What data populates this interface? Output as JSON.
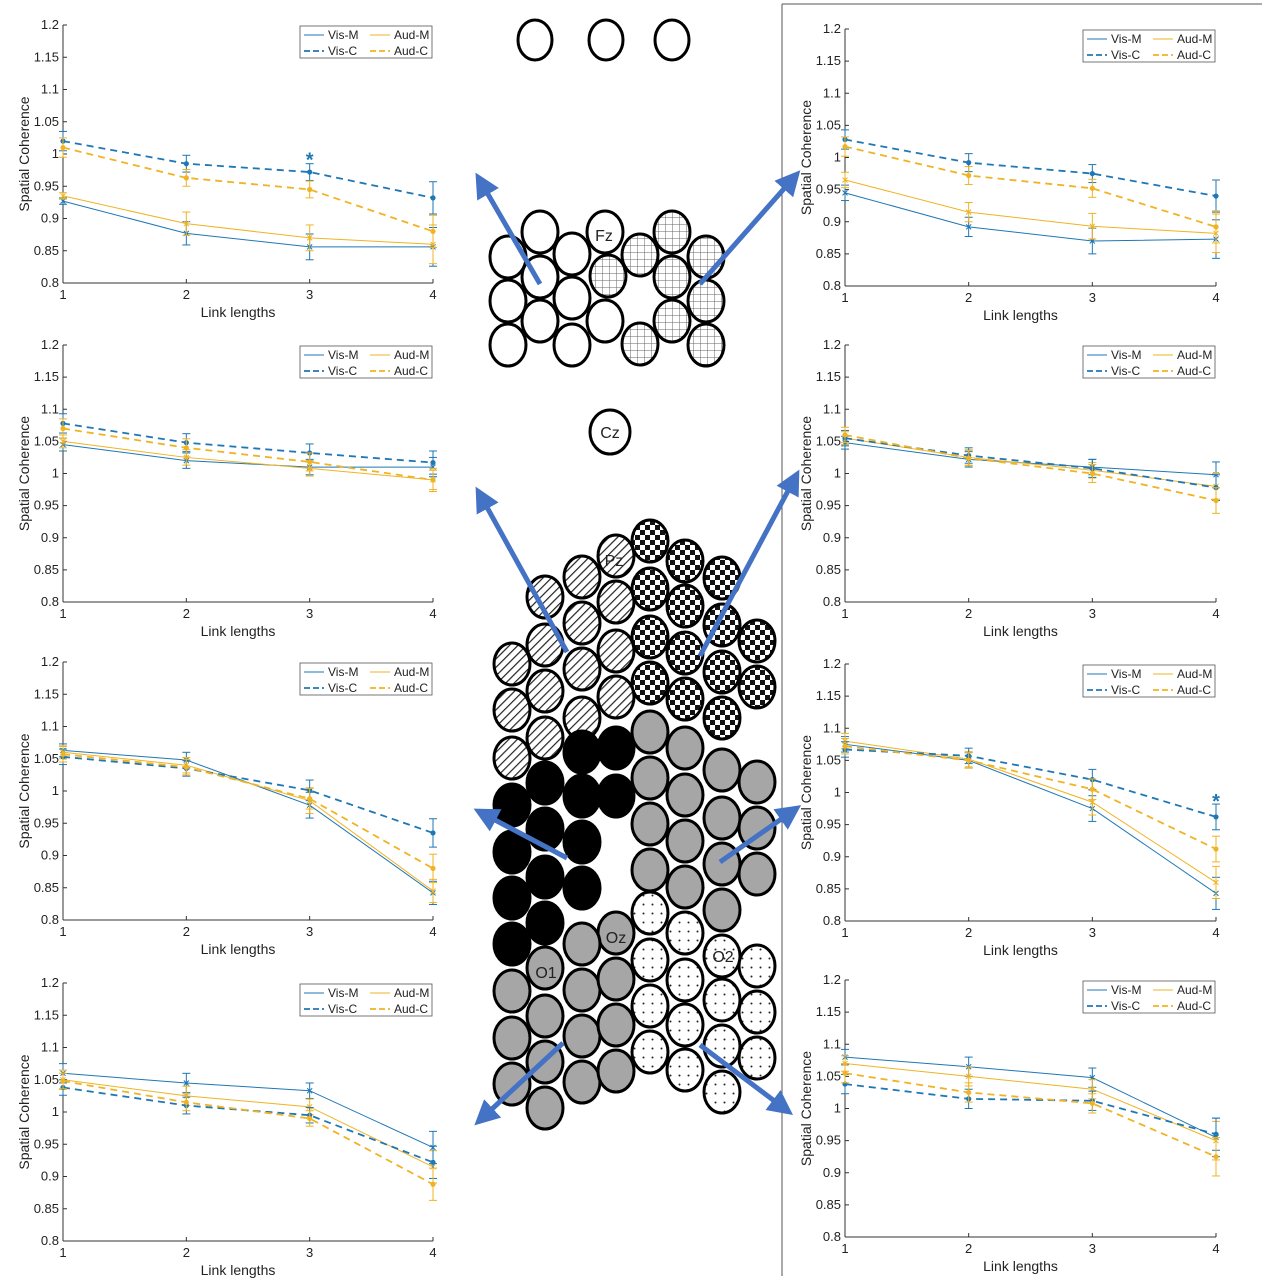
{
  "legend": {
    "vis_m": "Vis-M",
    "aud_m": "Aud-M",
    "vis_c": "Vis-C",
    "aud_c": "Aud-C"
  },
  "colors": {
    "vis": "#1f77b4",
    "aud": "#f0b323",
    "arrow": "#4472c4"
  },
  "chart_data": [
    {
      "type": "line",
      "panel": "left-1",
      "x": [
        1,
        2,
        3,
        4
      ],
      "xlabel": "Link lengths",
      "ylabel": "Spatial Coherence",
      "ylim": [
        0.8,
        1.2
      ],
      "legend_position": "top-right",
      "series": [
        {
          "name": "Vis-M",
          "values": [
            0.927,
            0.877,
            0.856,
            0.856
          ],
          "err": [
            0.005,
            0.018,
            0.02,
            0.03
          ]
        },
        {
          "name": "Aud-M",
          "values": [
            0.935,
            0.892,
            0.87,
            0.86
          ],
          "err": [
            0.005,
            0.018,
            0.02,
            0.03
          ]
        },
        {
          "name": "Vis-C",
          "values": [
            1.02,
            0.985,
            0.972,
            0.932
          ],
          "err": [
            0.015,
            0.013,
            0.013,
            0.025
          ]
        },
        {
          "name": "Aud-C",
          "values": [
            1.01,
            0.963,
            0.945,
            0.88
          ],
          "err": [
            0.015,
            0.013,
            0.013,
            0.025
          ]
        }
      ],
      "annotations": [
        {
          "x": 3,
          "y": 0.99,
          "text": "*"
        }
      ]
    },
    {
      "type": "line",
      "panel": "left-2",
      "x": [
        1,
        2,
        3,
        4
      ],
      "xlabel": "Link lengths",
      "ylabel": "Spatial Coherence",
      "ylim": [
        0.8,
        1.2
      ],
      "legend_position": "top-right",
      "series": [
        {
          "name": "Vis-M",
          "values": [
            1.045,
            1.02,
            1.01,
            1.01
          ],
          "err": [
            0.01,
            0.012,
            0.012,
            0.015
          ]
        },
        {
          "name": "Aud-M",
          "values": [
            1.05,
            1.025,
            1.008,
            0.99
          ],
          "err": [
            0.01,
            0.012,
            0.012,
            0.015
          ]
        },
        {
          "name": "Vis-C",
          "values": [
            1.078,
            1.048,
            1.032,
            1.017
          ],
          "err": [
            0.015,
            0.014,
            0.014,
            0.018
          ]
        },
        {
          "name": "Aud-C",
          "values": [
            1.07,
            1.04,
            1.018,
            0.99
          ],
          "err": [
            0.015,
            0.014,
            0.014,
            0.018
          ]
        }
      ],
      "annotations": []
    },
    {
      "type": "line",
      "panel": "left-3",
      "x": [
        1,
        2,
        3,
        4
      ],
      "xlabel": "Link lengths",
      "ylabel": "Spatial Coherence",
      "ylim": [
        0.8,
        1.2
      ],
      "legend_position": "top-right",
      "series": [
        {
          "name": "Vis-M",
          "values": [
            1.063,
            1.048,
            0.978,
            0.842
          ],
          "err": [
            0.01,
            0.012,
            0.02,
            0.018
          ]
        },
        {
          "name": "Aud-M",
          "values": [
            1.06,
            1.04,
            0.985,
            0.845
          ],
          "err": [
            0.01,
            0.012,
            0.02,
            0.018
          ]
        },
        {
          "name": "Vis-C",
          "values": [
            1.053,
            1.035,
            1.001,
            0.935
          ],
          "err": [
            0.012,
            0.012,
            0.016,
            0.022
          ]
        },
        {
          "name": "Aud-C",
          "values": [
            1.057,
            1.037,
            0.988,
            0.88
          ],
          "err": [
            0.012,
            0.012,
            0.016,
            0.022
          ]
        }
      ],
      "annotations": []
    },
    {
      "type": "line",
      "panel": "left-4",
      "x": [
        1,
        2,
        3,
        4
      ],
      "xlabel": "Link lengths",
      "ylabel": "Spatial Coherence",
      "ylim": [
        0.8,
        1.2
      ],
      "legend_position": "top-right",
      "series": [
        {
          "name": "Vis-M",
          "values": [
            1.06,
            1.045,
            1.033,
            0.945
          ],
          "err": [
            0.015,
            0.015,
            0.012,
            0.025
          ]
        },
        {
          "name": "Aud-M",
          "values": [
            1.05,
            1.025,
            1.008,
            0.915
          ],
          "err": [
            0.015,
            0.015,
            0.012,
            0.025
          ]
        },
        {
          "name": "Vis-C",
          "values": [
            1.038,
            1.01,
            0.995,
            0.922
          ],
          "err": [
            0.012,
            0.013,
            0.012,
            0.025
          ]
        },
        {
          "name": "Aud-C",
          "values": [
            1.048,
            1.015,
            0.99,
            0.888
          ],
          "err": [
            0.012,
            0.013,
            0.012,
            0.025
          ]
        }
      ],
      "annotations": []
    },
    {
      "type": "line",
      "panel": "right-1",
      "x": [
        1,
        2,
        3,
        4
      ],
      "xlabel": "Link lengths",
      "ylabel": "Spatial Coherence",
      "ylim": [
        0.8,
        1.2
      ],
      "legend_position": "top-right",
      "series": [
        {
          "name": "Vis-M",
          "values": [
            0.945,
            0.892,
            0.87,
            0.873
          ],
          "err": [
            0.012,
            0.015,
            0.02,
            0.03
          ]
        },
        {
          "name": "Aud-M",
          "values": [
            0.965,
            0.915,
            0.893,
            0.882
          ],
          "err": [
            0.012,
            0.015,
            0.02,
            0.03
          ]
        },
        {
          "name": "Vis-C",
          "values": [
            1.028,
            0.992,
            0.975,
            0.94
          ],
          "err": [
            0.015,
            0.014,
            0.014,
            0.025
          ]
        },
        {
          "name": "Aud-C",
          "values": [
            1.017,
            0.972,
            0.952,
            0.892
          ],
          "err": [
            0.015,
            0.014,
            0.014,
            0.025
          ]
        }
      ],
      "annotations": []
    },
    {
      "type": "line",
      "panel": "right-2",
      "x": [
        1,
        2,
        3,
        4
      ],
      "xlabel": "Link lengths",
      "ylabel": "Spatial Coherence",
      "ylim": [
        0.8,
        1.2
      ],
      "legend_position": "top-right",
      "series": [
        {
          "name": "Vis-M",
          "values": [
            1.048,
            1.022,
            1.01,
            0.998
          ],
          "err": [
            0.01,
            0.012,
            0.012,
            0.02
          ]
        },
        {
          "name": "Aud-M",
          "values": [
            1.055,
            1.025,
            1.005,
            0.98
          ],
          "err": [
            0.01,
            0.012,
            0.012,
            0.02
          ]
        },
        {
          "name": "Vis-C",
          "values": [
            1.055,
            1.028,
            1.008,
            0.978
          ],
          "err": [
            0.012,
            0.012,
            0.014,
            0.02
          ]
        },
        {
          "name": "Aud-C",
          "values": [
            1.06,
            1.024,
            1.0,
            0.958
          ],
          "err": [
            0.012,
            0.012,
            0.014,
            0.02
          ]
        }
      ],
      "annotations": []
    },
    {
      "type": "line",
      "panel": "right-3",
      "x": [
        1,
        2,
        3,
        4
      ],
      "xlabel": "Link lengths",
      "ylabel": "Spatial Coherence",
      "ylim": [
        0.8,
        1.2
      ],
      "legend_position": "top-right",
      "series": [
        {
          "name": "Vis-M",
          "values": [
            1.075,
            1.05,
            0.975,
            0.843
          ],
          "err": [
            0.012,
            0.012,
            0.02,
            0.025
          ]
        },
        {
          "name": "Aud-M",
          "values": [
            1.08,
            1.052,
            0.985,
            0.86
          ],
          "err": [
            0.012,
            0.012,
            0.02,
            0.025
          ]
        },
        {
          "name": "Vis-C",
          "values": [
            1.067,
            1.057,
            1.02,
            0.962
          ],
          "err": [
            0.012,
            0.012,
            0.016,
            0.02
          ]
        },
        {
          "name": "Aud-C",
          "values": [
            1.072,
            1.05,
            1.005,
            0.912
          ],
          "err": [
            0.012,
            0.012,
            0.016,
            0.02
          ]
        }
      ],
      "annotations": [
        {
          "x": 4,
          "y": 0.985,
          "text": "*"
        }
      ]
    },
    {
      "type": "line",
      "panel": "right-4",
      "x": [
        1,
        2,
        3,
        4
      ],
      "xlabel": "Link lengths",
      "ylabel": "Spatial Coherence",
      "ylim": [
        0.8,
        1.2
      ],
      "legend_position": "top-right",
      "series": [
        {
          "name": "Vis-M",
          "values": [
            1.08,
            1.065,
            1.048,
            0.955
          ],
          "err": [
            0.012,
            0.015,
            0.015,
            0.03
          ]
        },
        {
          "name": "Aud-M",
          "values": [
            1.07,
            1.05,
            1.03,
            0.95
          ],
          "err": [
            0.012,
            0.015,
            0.015,
            0.03
          ]
        },
        {
          "name": "Vis-C",
          "values": [
            1.038,
            1.015,
            1.012,
            0.96
          ],
          "err": [
            0.015,
            0.015,
            0.015,
            0.025
          ]
        },
        {
          "name": "Aud-C",
          "values": [
            1.055,
            1.025,
            1.008,
            0.925
          ],
          "err": [
            0.015,
            0.015,
            0.015,
            0.03
          ]
        }
      ],
      "annotations": []
    }
  ],
  "electrode_labels": {
    "fz": "Fz",
    "cz": "Cz",
    "pz": "Pz",
    "oz": "Oz",
    "o1": "O1",
    "o2": "O2"
  }
}
